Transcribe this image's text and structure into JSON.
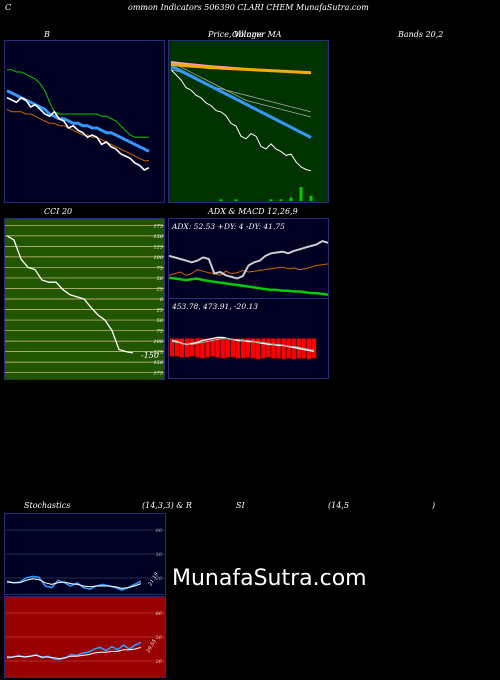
{
  "header": {
    "left": "C",
    "mid": "ommon  Indicators 506390  CLARI CHEM MunafaSutra.com"
  },
  "titles": {
    "bands_b": "B",
    "price_a": "Price,  Volume",
    "price_b": "Ollinger  MA",
    "bands_right": "Bands 20,2",
    "cci": "CCI 20",
    "adx": "ADX  & MACD 12,26,9",
    "stoch_a": "Stochastics",
    "stoch_b": "(14,3,3) & R",
    "stoch_c": "SI",
    "stoch_d": "(14,5",
    "stoch_e": ")"
  },
  "watermark": "MunafaSutra.com",
  "colors": {
    "panel_border": "#2b2b7a",
    "dark_bg": "#000022",
    "green_bg": "#003300",
    "olive_bg": "#225500",
    "rsi_bg": "#990000",
    "white": "#ffffff",
    "blue": "#3399ff",
    "orange": "#cc6600",
    "green": "#00cc00",
    "red": "#ff0000",
    "pink": "#ff99cc",
    "gold": "#ffaa00"
  },
  "chart_data": [
    {
      "id": "bollinger",
      "type": "line",
      "series": [
        {
          "color": "#00cc00",
          "values": [
            72,
            72,
            71,
            71,
            70,
            69,
            68,
            66,
            63,
            58,
            54,
            53,
            53,
            53,
            53,
            53,
            53,
            53,
            53,
            53,
            52,
            52,
            51,
            50,
            48,
            46,
            44,
            43,
            43,
            43,
            43
          ]
        },
        {
          "color": "#3399ff",
          "values": [
            63,
            62,
            61,
            60,
            59,
            58,
            57,
            56,
            55,
            53,
            52,
            51,
            51,
            50,
            49,
            49,
            48,
            48,
            47,
            47,
            46,
            45,
            45,
            44,
            43,
            42,
            41,
            40,
            39,
            38,
            37
          ]
        },
        {
          "color": "#cc6600",
          "values": [
            55,
            54,
            54,
            54,
            53,
            53,
            52,
            51,
            50,
            49,
            49,
            48,
            48,
            47,
            46,
            45,
            44,
            44,
            43,
            43,
            42,
            41,
            40,
            39,
            38,
            37,
            36,
            35,
            34,
            33,
            33
          ]
        },
        {
          "color": "#ffffff",
          "values": [
            60,
            59,
            58,
            60,
            59,
            56,
            57,
            55,
            53,
            52,
            54,
            51,
            50,
            47,
            48,
            46,
            45,
            43,
            44,
            43,
            40,
            41,
            39,
            38,
            36,
            35,
            34,
            32,
            31,
            29,
            30
          ]
        }
      ],
      "ylim": [
        20,
        80
      ]
    },
    {
      "id": "price_ma",
      "type": "line",
      "series": [
        {
          "color": "#ff99cc",
          "values": [
            78,
            77.5,
            77,
            76.6,
            76.2,
            75.8,
            75.4,
            75,
            74.7,
            74.4,
            74.1,
            73.8,
            73.5,
            73.2,
            72.9,
            72.6,
            72.3,
            72,
            71.8,
            71.6,
            71.4,
            71.2,
            71,
            70.8,
            70.6,
            70.4,
            70.2,
            70,
            69.8
          ]
        },
        {
          "color": "#ffaa00",
          "values": [
            76,
            75.7,
            75.4,
            75.1,
            74.8,
            74.5,
            74.2,
            73.9,
            73.6,
            73.4,
            73.2,
            73,
            72.8,
            72.6,
            72.4,
            72.2,
            72,
            71.8,
            71.6,
            71.4,
            71.2,
            71,
            70.8,
            70.6,
            70.4,
            70.2,
            70,
            69.8,
            69.6
          ]
        },
        {
          "color": "#aaaaaa",
          "values": [
            77,
            76,
            74,
            72,
            70,
            68,
            66,
            64,
            62,
            60,
            58,
            56,
            54,
            52,
            50,
            48,
            47,
            46,
            45,
            44,
            43,
            42,
            41,
            40,
            39,
            38,
            37,
            36,
            35
          ]
        },
        {
          "color": "#aaaaaa",
          "values": [
            72,
            71,
            70,
            68,
            66,
            64,
            62,
            60,
            59,
            58,
            57,
            56,
            55,
            54,
            53,
            52,
            51,
            50,
            49,
            48,
            47,
            46,
            45,
            44,
            43,
            42,
            41,
            40,
            39
          ]
        },
        {
          "color": "#3399ff",
          "values": [
            74,
            73,
            71,
            69,
            67,
            65,
            63,
            61,
            59,
            57,
            55,
            53,
            51,
            49,
            47,
            45,
            43,
            41,
            39,
            37,
            35,
            33,
            31,
            29,
            27,
            25,
            23,
            21,
            19
          ]
        },
        {
          "color": "#ffffff",
          "values": [
            72,
            68,
            64,
            58,
            56,
            52,
            50,
            46,
            44,
            40,
            39,
            36,
            30,
            28,
            20,
            18,
            22,
            20,
            12,
            10,
            14,
            10,
            8,
            5,
            6,
            0,
            -4,
            -6,
            -7
          ]
        }
      ],
      "volume": [
        0,
        0,
        0,
        0,
        0,
        0,
        0,
        0,
        0,
        0,
        1,
        0,
        0,
        1,
        0,
        0,
        0,
        0,
        0,
        0,
        1,
        0,
        1,
        0,
        2,
        0,
        8,
        0,
        3
      ],
      "ylim": [
        -15,
        85
      ]
    },
    {
      "id": "cci",
      "type": "line",
      "ticks": [
        175,
        150,
        125,
        100,
        75,
        50,
        25,
        0,
        -25,
        -50,
        -75,
        -100,
        -125,
        -150,
        -175
      ],
      "tick_labels": [
        "175",
        "150",
        "125",
        "100",
        "75",
        "50",
        "25",
        "0",
        "25",
        "50",
        "75",
        "100",
        "125",
        "150",
        "175"
      ],
      "series": [
        {
          "color": "#ffffff",
          "values": [
            150,
            140,
            95,
            75,
            70,
            45,
            40,
            40,
            22,
            10,
            5,
            0,
            -20,
            -38,
            -50,
            -75,
            -120,
            -125,
            -128
          ]
        }
      ],
      "last_label": "-150",
      "ylim": [
        -190,
        190
      ]
    },
    {
      "id": "adx",
      "type": "line",
      "label_text": "ADX: 52.53  +DY: 4  -DY: 41.75",
      "series": [
        {
          "name": "+DI",
          "color": "#00cc00",
          "values": [
            25,
            24,
            23,
            22,
            23,
            24,
            22,
            21,
            20,
            19,
            18,
            17,
            16,
            15,
            14,
            13,
            12,
            11,
            10,
            10,
            9,
            9,
            8,
            8,
            7,
            6,
            6,
            5,
            4
          ]
        },
        {
          "name": "-DI",
          "color": "#cc6600",
          "values": [
            28,
            30,
            32,
            28,
            30,
            35,
            33,
            31,
            30,
            28,
            33,
            30,
            31,
            34,
            32,
            33,
            34,
            35,
            36,
            37,
            38,
            36,
            37,
            35,
            36,
            38,
            40,
            41,
            42
          ]
        },
        {
          "name": "ADX",
          "color": "#cccccc",
          "values": [
            52,
            50,
            48,
            46,
            44,
            46,
            50,
            48,
            30,
            32,
            28,
            26,
            24,
            27,
            40,
            44,
            46,
            52,
            55,
            56,
            57,
            55,
            58,
            60,
            62,
            64,
            66,
            70,
            68
          ]
        }
      ],
      "ylim": [
        0,
        80
      ]
    },
    {
      "id": "macd",
      "type": "bar",
      "label_text": "453.78,  473.91,  -20.13",
      "bars": [
        -18,
        -18,
        -19,
        -19,
        -18,
        -19,
        -20,
        -19,
        -18,
        -19,
        -20,
        -19,
        -19,
        -20,
        -20,
        -19,
        -20,
        -21,
        -20,
        -19,
        -20,
        -20,
        -21,
        -20,
        -21,
        -20,
        -20,
        -21,
        -20
      ],
      "series": [
        {
          "name": "macd",
          "color": "#ffffff",
          "values": [
            -2,
            -3,
            -5,
            -6,
            -5,
            -4,
            -2,
            -1,
            0,
            1,
            1,
            0,
            -1,
            -2,
            -2,
            -3,
            -3,
            -4,
            -5,
            -6,
            -6,
            -7,
            -7,
            -8,
            -9,
            -10,
            -11,
            -12,
            -13
          ]
        },
        {
          "name": "signal",
          "color": "#aaaaaa",
          "values": [
            -3,
            -4,
            -5,
            -6,
            -6,
            -5,
            -4,
            -3,
            -2,
            -1,
            0,
            0,
            -1,
            -1,
            -2,
            -2,
            -3,
            -4,
            -4,
            -5,
            -6,
            -6,
            -7,
            -8,
            -8,
            -9,
            -10,
            -11,
            -12
          ]
        }
      ],
      "ylim": [
        -40,
        40
      ]
    },
    {
      "id": "stochastics",
      "type": "line",
      "ticks": [
        80,
        50,
        20
      ],
      "tick_labels": [
        "80",
        "50",
        "20"
      ],
      "last_label": "21.19",
      "series": [
        {
          "color": "#3399ff",
          "values": [
            16,
            14,
            15,
            20,
            22,
            21,
            10,
            8,
            17,
            14,
            10,
            14,
            8,
            6,
            10,
            12,
            10,
            8,
            5,
            8,
            12,
            16
          ]
        },
        {
          "color": "#ffffff",
          "values": [
            15,
            14,
            14,
            17,
            19,
            18,
            14,
            12,
            14,
            15,
            13,
            12,
            10,
            9,
            10,
            10,
            10,
            9,
            7,
            8,
            10,
            13
          ]
        }
      ],
      "ylim": [
        0,
        100
      ]
    },
    {
      "id": "rsi",
      "type": "line",
      "ticks": [
        80,
        50,
        20
      ],
      "tick_labels": [
        "80",
        "50",
        "20"
      ],
      "last_label": "29.55",
      "series": [
        {
          "color": "#3399ff",
          "values": [
            24,
            25,
            27,
            25,
            26,
            28,
            24,
            26,
            23,
            22,
            24,
            28,
            27,
            30,
            31,
            35,
            37,
            33,
            38,
            34,
            40,
            35,
            40,
            43
          ]
        },
        {
          "color": "#ffffff",
          "values": [
            25,
            25,
            26,
            25,
            26,
            27,
            25,
            25,
            24,
            23,
            24,
            26,
            26,
            27,
            28,
            30,
            31,
            31,
            32,
            32,
            34,
            34,
            35,
            37
          ]
        }
      ],
      "ylim": [
        0,
        100
      ]
    }
  ]
}
